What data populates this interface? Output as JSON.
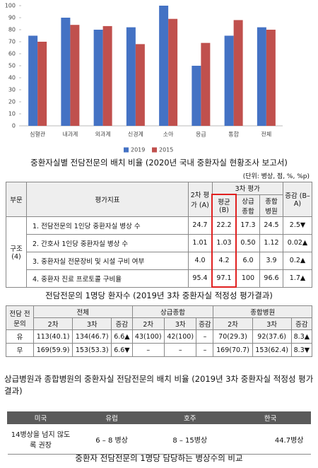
{
  "chart_data": {
    "type": "bar",
    "categories": [
      "심혈관",
      "내과계",
      "외과계",
      "신경계",
      "소아",
      "응급",
      "통합",
      "전체"
    ],
    "series": [
      {
        "name": "2019",
        "color": "#4472c4",
        "values": [
          75,
          90,
          80,
          82,
          100,
          50,
          75,
          82
        ]
      },
      {
        "name": "2015",
        "color": "#c0504d",
        "values": [
          70,
          84,
          83,
          68,
          89,
          69,
          88,
          80
        ]
      }
    ],
    "ylim": [
      0,
      100
    ],
    "yticks": [
      0,
      10,
      20,
      30,
      40,
      50,
      60,
      70,
      80,
      90,
      100
    ],
    "grid": false,
    "legend": "bottom"
  },
  "caption1": "중환자실별 전담전문의 배치 비율 (2020년 국내 중환자실 현황조사 보고서)",
  "table1": {
    "unit": "(단위: 병상, 점, %, %p)",
    "columns": {
      "section": "부문",
      "indicator": "평가지표",
      "second": "2차 평가 (A)",
      "third": "3차 평가",
      "mean": "평균 (B)",
      "tertiary": "상급 종합",
      "general": "종합 병원",
      "change": "증감 (B–A)"
    },
    "section_label": "구조 (4)",
    "rows": [
      [
        "1. 전담전문의 1인당 중환자실 병상 수",
        "24.7",
        "22.2",
        "17.3",
        "24.5",
        "2.5▼"
      ],
      [
        "2. 간호사 1인당 중환자실 병상 수",
        "1.01",
        "1.03",
        "0.50",
        "1.12",
        "0.02▲"
      ],
      [
        "3. 중환자실 전문장비 및 시설 구비 여부",
        "4.0",
        "4.2",
        "6.0",
        "3.9",
        "0.2▲"
      ],
      [
        "4. 중환자 진료 프로토콜 구비율",
        "95.4",
        "97.1",
        "100",
        "96.6",
        "1.7▲"
      ]
    ]
  },
  "caption2": "전담전문의 1명당 환자수 (2019년 3차 중환자실 적정성 평가결과)",
  "table2": {
    "headers": [
      "전담 전문의",
      "전체",
      "상급종합",
      "종합병원"
    ],
    "subheaders": [
      "2차",
      "3차",
      "증감",
      "2차",
      "3차",
      "증감",
      "2차",
      "3차",
      "증감"
    ],
    "rows": [
      [
        "유",
        "113(40.1)",
        "134(46.7)",
        "6.6▲",
        "43(100)",
        "42(100)",
        "–",
        "70(29.3)",
        "92(37.6)",
        "8.3▲"
      ],
      [
        "무",
        "169(59.9)",
        "153(53.3)",
        "6.6▼",
        "–",
        "–",
        "–",
        "169(70.7)",
        "153(62.4)",
        "8.3▼"
      ]
    ]
  },
  "caption3": "상급병원과 종합병원의 중환자실 전담전문의 배치 비율 (2019년 3차 중환자실 적정성 평가결과)",
  "table3": {
    "headers": [
      "미국",
      "유럽",
      "호주",
      "한국"
    ],
    "row": [
      "14병상을 넘지 않도록 권장",
      "6 – 8 병상",
      "8 – 15병상",
      "44.7병상"
    ]
  },
  "caption4": "중환자 전담전문의 1명당 담당하는 병상수의 비교"
}
